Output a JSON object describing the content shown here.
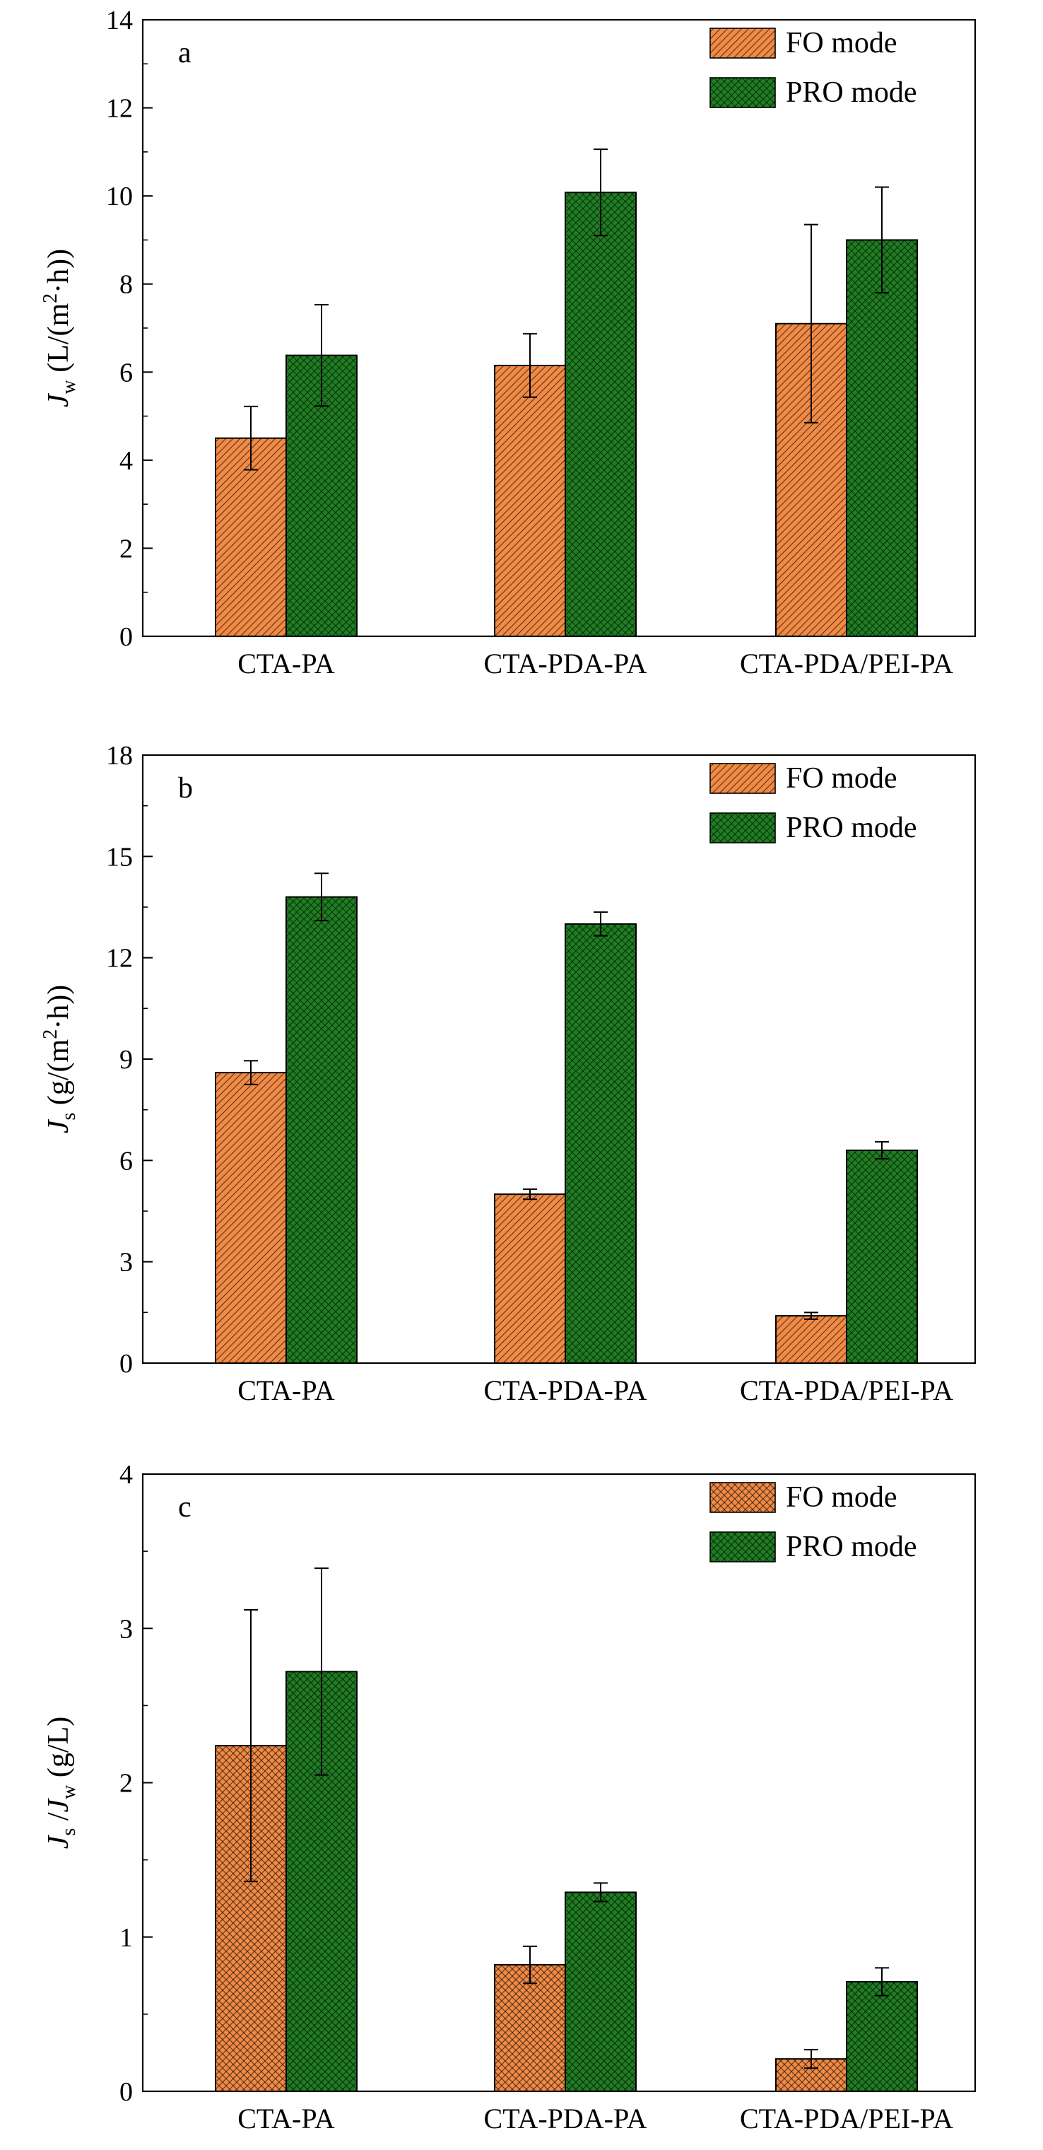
{
  "colors": {
    "fo": "#f08a45",
    "pro": "#1f7d22",
    "frame": "#000000"
  },
  "chart_data": [
    {
      "type": "bar",
      "panel_letter": "a",
      "categories": [
        "CTA-PA",
        "CTA-PDA-PA",
        "CTA-PDA/PEI-PA"
      ],
      "series": [
        {
          "name": "FO mode",
          "values": [
            4.5,
            6.15,
            7.1
          ],
          "errors": [
            0.72,
            0.72,
            2.25
          ],
          "pattern": "diagonal"
        },
        {
          "name": "PRO mode",
          "values": [
            6.38,
            10.08,
            9.0
          ],
          "errors": [
            1.15,
            0.98,
            1.2
          ],
          "pattern": "crosshatch"
        }
      ],
      "ylabel_parts": [
        "J",
        "w",
        " (L/(m",
        "2",
        "·h))"
      ],
      "ylim": [
        0,
        14
      ],
      "yticks": [
        "0",
        "2",
        "4",
        "6",
        "8",
        "10",
        "12",
        "14"
      ],
      "legend_position": "top-right",
      "grid": false
    },
    {
      "type": "bar",
      "panel_letter": "b",
      "categories": [
        "CTA-PA",
        "CTA-PDA-PA",
        "CTA-PDA/PEI-PA"
      ],
      "series": [
        {
          "name": "FO mode",
          "values": [
            8.6,
            5.0,
            1.4
          ],
          "errors": [
            0.35,
            0.15,
            0.1
          ],
          "pattern": "diagonal"
        },
        {
          "name": "PRO mode",
          "values": [
            13.8,
            13.0,
            6.3
          ],
          "errors": [
            0.7,
            0.35,
            0.25
          ],
          "pattern": "crosshatch"
        }
      ],
      "ylabel_parts": [
        "J",
        "s",
        " (g/(m",
        "2",
        "·h))"
      ],
      "ylim": [
        0,
        18
      ],
      "yticks": [
        "0",
        "3",
        "6",
        "9",
        "12",
        "15",
        "18"
      ],
      "legend_position": "top-right",
      "grid": false
    },
    {
      "type": "bar",
      "panel_letter": "c",
      "categories": [
        "CTA-PA",
        "CTA-PDA-PA",
        "CTA-PDA/PEI-PA"
      ],
      "series": [
        {
          "name": "FO mode",
          "values": [
            2.24,
            0.82,
            0.21
          ],
          "errors": [
            0.88,
            0.12,
            0.06
          ],
          "pattern": "mesh"
        },
        {
          "name": "PRO mode",
          "values": [
            2.72,
            1.29,
            0.71
          ],
          "errors": [
            0.67,
            0.06,
            0.09
          ],
          "pattern": "mesh"
        }
      ],
      "ylabel_parts": [
        "J",
        "s",
        " /J",
        "w",
        " (g/L)"
      ],
      "ylim": [
        0,
        4
      ],
      "yticks": [
        "0",
        "1",
        "2",
        "3",
        "4"
      ],
      "legend_position": "top-right",
      "grid": false
    }
  ]
}
